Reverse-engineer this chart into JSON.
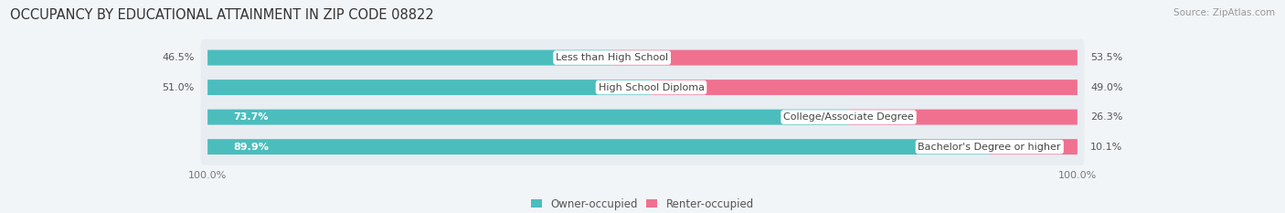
{
  "title": "OCCUPANCY BY EDUCATIONAL ATTAINMENT IN ZIP CODE 08822",
  "source": "Source: ZipAtlas.com",
  "categories": [
    "Less than High School",
    "High School Diploma",
    "College/Associate Degree",
    "Bachelor's Degree or higher"
  ],
  "owner_pct": [
    46.5,
    51.0,
    73.7,
    89.9
  ],
  "renter_pct": [
    53.5,
    49.0,
    26.3,
    10.1
  ],
  "owner_color": "#4bbdbd",
  "renter_color": "#f07090",
  "bg_color": "#f2f5f8",
  "row_bg_color": "#e8edf2",
  "title_fontsize": 10.5,
  "label_fontsize": 8.0,
  "pct_fontsize": 8.0,
  "tick_fontsize": 8.0,
  "legend_fontsize": 8.5,
  "source_fontsize": 7.5,
  "pct_label_inside_threshold": 60,
  "total_width": 100
}
